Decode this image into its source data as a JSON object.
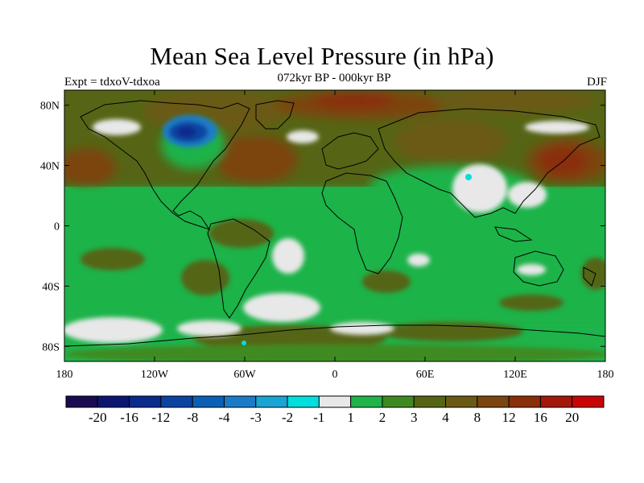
{
  "title": "Mean Sea Level Pressure (in hPa)",
  "subtitle": "072kyr BP - 000kyr BP",
  "experiment_label": "Expt = tdxoV-tdxoa",
  "season_label": "DJF",
  "map": {
    "lon_range": [
      -180,
      180
    ],
    "lat_range": [
      -90,
      90
    ],
    "x_ticks": [
      {
        "lon": -180,
        "label": "180"
      },
      {
        "lon": -120,
        "label": "120W"
      },
      {
        "lon": -60,
        "label": "60W"
      },
      {
        "lon": 0,
        "label": "0"
      },
      {
        "lon": 60,
        "label": "60E"
      },
      {
        "lon": 120,
        "label": "120E"
      },
      {
        "lon": 180,
        "label": "180"
      }
    ],
    "y_ticks": [
      {
        "lat": 80,
        "label": "80N"
      },
      {
        "lat": 40,
        "label": "40N"
      },
      {
        "lat": 0,
        "label": "0"
      },
      {
        "lat": -40,
        "label": "40S"
      },
      {
        "lat": -80,
        "label": "80S"
      }
    ]
  },
  "colorbar": {
    "colors": [
      "#1a0a52",
      "#0c1670",
      "#0a2a8c",
      "#0a44a0",
      "#0a60b4",
      "#1a7cc8",
      "#18a4d4",
      "#00dede",
      "#e8e8e8",
      "#1fb34a",
      "#3f8a20",
      "#556515",
      "#6b5a14",
      "#7c4410",
      "#8a2e0a",
      "#a31808",
      "#c80404"
    ],
    "labels": [
      "-20",
      "-16",
      "-12",
      "-8",
      "-4",
      "-3",
      "-2",
      "-1",
      "1",
      "2",
      "3",
      "4",
      "8",
      "12",
      "16",
      "20"
    ]
  }
}
